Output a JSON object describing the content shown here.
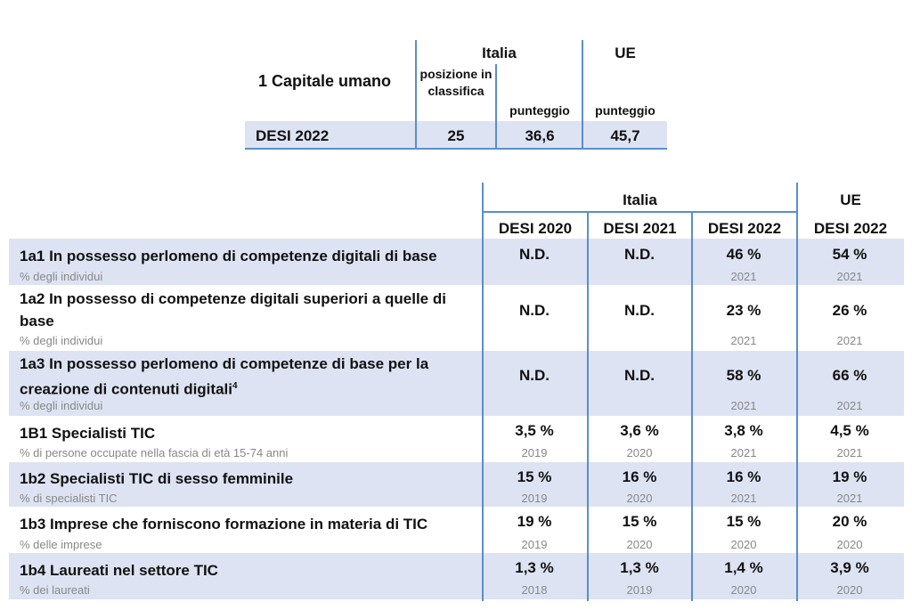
{
  "summary": {
    "title": "1 Capitale umano",
    "italia_label": "Italia",
    "ue_label": "UE",
    "col_posizione": "posizione in classifica",
    "col_punteggio": "punteggio",
    "col_ue_punteggio": "punteggio",
    "row_label": "DESI 2022",
    "row_posizione": "25",
    "row_punteggio": "36,6",
    "row_ue": "45,7"
  },
  "detail": {
    "italia_label": "Italia",
    "ue_label": "UE",
    "cols": [
      "DESI 2020",
      "DESI 2021",
      "DESI 2022",
      "DESI 2022"
    ],
    "rows": [
      {
        "label": "1a1 In possesso perlomeno di competenze digitali di base",
        "sup": "",
        "unit": "% degli individui",
        "cells": [
          {
            "v": "N.D.",
            "y": ""
          },
          {
            "v": "N.D.",
            "y": ""
          },
          {
            "v": "46 %",
            "y": "2021"
          },
          {
            "v": "54 %",
            "y": "2021"
          }
        ]
      },
      {
        "label": "1a2 In possesso di competenze digitali superiori a quelle di base",
        "sup": "",
        "unit": "% degli individui",
        "cells": [
          {
            "v": "N.D.",
            "y": ""
          },
          {
            "v": "N.D.",
            "y": ""
          },
          {
            "v": "23 %",
            "y": "2021"
          },
          {
            "v": "26 %",
            "y": "2021"
          }
        ]
      },
      {
        "label": "1a3 In possesso perlomeno di competenze di base per la creazione di contenuti digitali",
        "sup": "4",
        "unit": "% degli individui",
        "cells": [
          {
            "v": "N.D.",
            "y": ""
          },
          {
            "v": "N.D.",
            "y": ""
          },
          {
            "v": "58 %",
            "y": "2021"
          },
          {
            "v": "66 %",
            "y": "2021"
          }
        ]
      },
      {
        "label": "1B1 Specialisti TIC",
        "sup": "",
        "unit": "% di persone occupate nella fascia di età 15-74 anni",
        "cells": [
          {
            "v": "3,5 %",
            "y": "2019"
          },
          {
            "v": "3,6 %",
            "y": "2020"
          },
          {
            "v": "3,8 %",
            "y": "2021"
          },
          {
            "v": "4,5 %",
            "y": "2021"
          }
        ]
      },
      {
        "label": "1b2 Specialisti TIC di sesso femminile",
        "sup": "",
        "unit": "% di specialisti TIC",
        "cells": [
          {
            "v": "15 %",
            "y": "2019"
          },
          {
            "v": "16 %",
            "y": "2020"
          },
          {
            "v": "16 %",
            "y": "2021"
          },
          {
            "v": "19 %",
            "y": "2021"
          }
        ]
      },
      {
        "label": "1b3 Imprese che forniscono formazione in materia di TIC",
        "sup": "",
        "unit": "% delle imprese",
        "cells": [
          {
            "v": "19 %",
            "y": "2019"
          },
          {
            "v": "15 %",
            "y": "2020"
          },
          {
            "v": "15 %",
            "y": "2020"
          },
          {
            "v": "20 %",
            "y": "2020"
          }
        ]
      },
      {
        "label": "1b4 Laureati nel settore TIC",
        "sup": "",
        "unit": "% dei laureati",
        "cells": [
          {
            "v": "1,3 %",
            "y": "2018"
          },
          {
            "v": "1,3 %",
            "y": "2019"
          },
          {
            "v": "1,4 %",
            "y": "2020"
          },
          {
            "v": "3,9 %",
            "y": "2020"
          }
        ]
      }
    ]
  },
  "colors": {
    "shade": "#dde3f2",
    "rule": "#5b8ec9",
    "muted": "#888888"
  }
}
